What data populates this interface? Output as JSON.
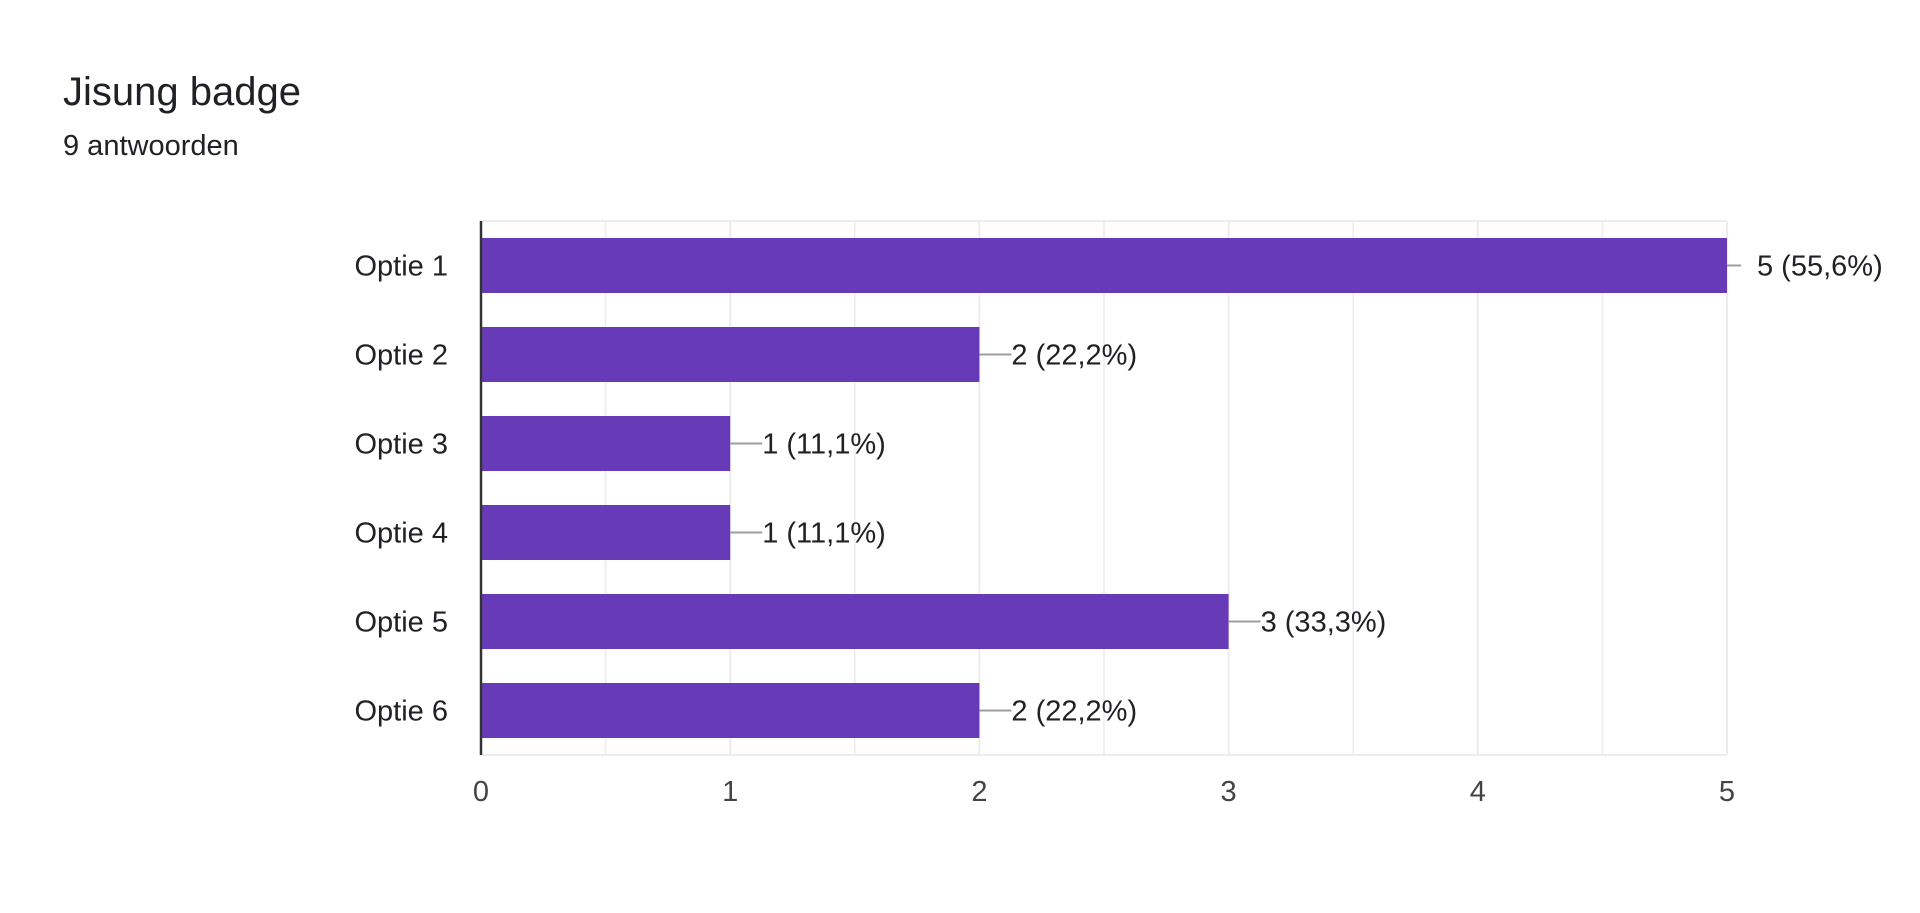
{
  "header": {
    "title": "Jisung badge",
    "subtitle": "9 antwoorden"
  },
  "chart_data": {
    "type": "bar",
    "orientation": "horizontal",
    "categories": [
      "Optie 1",
      "Optie 2",
      "Optie 3",
      "Optie 4",
      "Optie 5",
      "Optie 6"
    ],
    "values": [
      5,
      2,
      1,
      1,
      3,
      2
    ],
    "data_labels": [
      "5 (55,6%)",
      "2 (22,2%)",
      "1 (11,1%)",
      "1 (11,1%)",
      "3 (33,3%)",
      "2 (22,2%)"
    ],
    "xticks": [
      "0",
      "1",
      "2",
      "3",
      "4",
      "5"
    ],
    "xlim": [
      0,
      5
    ],
    "grid": true,
    "colors": {
      "bar": "#673ab7",
      "grid": "#ececec",
      "axis": "#333333",
      "leader": "#9e9e9e",
      "text": "#202124",
      "tick_text": "#444444"
    }
  }
}
